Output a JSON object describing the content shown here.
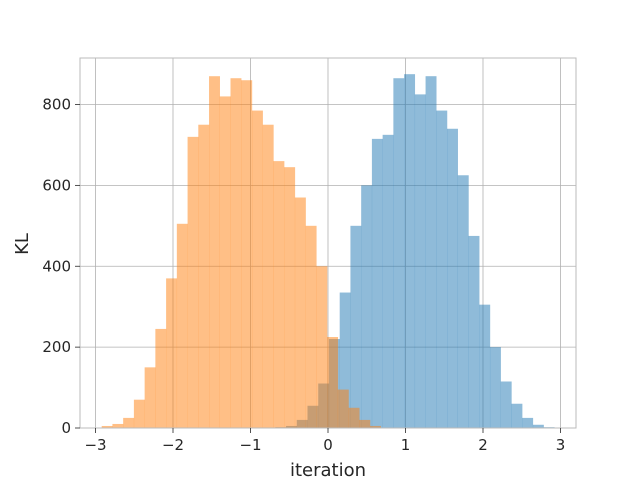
{
  "chart_data": {
    "type": "histogram",
    "xlabel": "iteration",
    "ylabel": "KL",
    "xlim": [
      -3.2,
      3.2
    ],
    "ylim": [
      0,
      915
    ],
    "xticks": [
      -3,
      -2,
      -1,
      0,
      1,
      2,
      3
    ],
    "yticks": [
      0,
      200,
      400,
      600,
      800
    ],
    "xtick_labels": [
      "−3",
      "−2",
      "−1",
      "0",
      "1",
      "2",
      "3"
    ],
    "ytick_labels": [
      "0",
      "200",
      "400",
      "600",
      "800"
    ],
    "grid": true,
    "series": [
      {
        "color": "#1f77b4",
        "opacity": 0.5,
        "bin_start": -0.68,
        "bin_width": 0.1385,
        "counts": [
          2,
          5,
          20,
          55,
          110,
          220,
          335,
          500,
          600,
          715,
          725,
          865,
          875,
          825,
          870,
          785,
          740,
          625,
          475,
          305,
          200,
          115,
          60,
          25,
          8,
          2
        ]
      },
      {
        "color": "#ff7f0e",
        "opacity": 0.5,
        "bin_start": -2.92,
        "bin_width": 0.1385,
        "counts": [
          5,
          10,
          25,
          70,
          150,
          245,
          370,
          505,
          720,
          750,
          870,
          820,
          865,
          860,
          785,
          750,
          660,
          645,
          570,
          500,
          400,
          225,
          95,
          50,
          20,
          5
        ]
      }
    ]
  }
}
